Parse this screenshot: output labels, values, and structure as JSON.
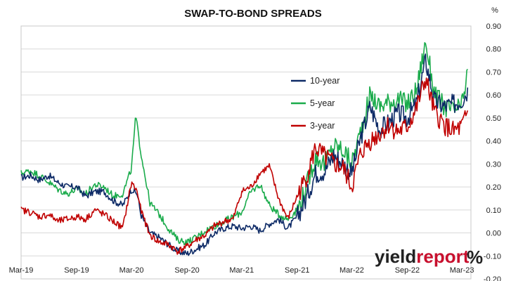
{
  "chart_data": {
    "type": "line",
    "title": "SWAP-TO-BOND SPREADS",
    "ylabel": "%",
    "xlabel": "",
    "ylim": [
      -0.2,
      0.9
    ],
    "yticks": [
      "0.90",
      "0.80",
      "0.70",
      "0.60",
      "0.50",
      "0.40",
      "0.30",
      "0.20",
      "0.10",
      "0.00",
      "-0.10",
      "-0.20"
    ],
    "ytick_values": [
      0.9,
      0.8,
      0.7,
      0.6,
      0.5,
      0.4,
      0.3,
      0.2,
      0.1,
      0.0,
      -0.1,
      -0.2
    ],
    "xticks": [
      "Mar-19",
      "Sep-19",
      "Mar-20",
      "Sep-20",
      "Mar-21",
      "Sep-21",
      "Mar-22",
      "Sep-22",
      "Mar-23"
    ],
    "xlim": [
      "2019-03-01",
      "2023-03-31"
    ],
    "grid": "horizontal",
    "legend_position": "center-top",
    "series": [
      {
        "name": "10-year",
        "color": "#0d2a66",
        "points": [
          [
            "2019-03-01",
            0.24
          ],
          [
            "2019-04-01",
            0.25
          ],
          [
            "2019-05-01",
            0.23
          ],
          [
            "2019-06-01",
            0.25
          ],
          [
            "2019-07-01",
            0.22
          ],
          [
            "2019-08-01",
            0.2
          ],
          [
            "2019-09-01",
            0.2
          ],
          [
            "2019-10-01",
            0.16
          ],
          [
            "2019-11-01",
            0.18
          ],
          [
            "2019-12-01",
            0.18
          ],
          [
            "2020-01-01",
            0.14
          ],
          [
            "2020-02-01",
            0.12
          ],
          [
            "2020-03-01",
            0.19
          ],
          [
            "2020-03-20",
            0.17
          ],
          [
            "2020-04-01",
            0.08
          ],
          [
            "2020-05-01",
            0.0
          ],
          [
            "2020-06-01",
            -0.02
          ],
          [
            "2020-07-01",
            -0.05
          ],
          [
            "2020-08-01",
            -0.08
          ],
          [
            "2020-09-01",
            -0.09
          ],
          [
            "2020-10-01",
            -0.07
          ],
          [
            "2020-11-01",
            -0.05
          ],
          [
            "2020-12-01",
            0.0
          ],
          [
            "2021-01-01",
            0.02
          ],
          [
            "2021-02-01",
            0.03
          ],
          [
            "2021-03-01",
            0.02
          ],
          [
            "2021-04-01",
            0.03
          ],
          [
            "2021-05-01",
            0.01
          ],
          [
            "2021-06-01",
            0.04
          ],
          [
            "2021-07-01",
            0.06
          ],
          [
            "2021-08-01",
            0.02
          ],
          [
            "2021-09-01",
            0.07
          ],
          [
            "2021-10-01",
            0.15
          ],
          [
            "2021-11-01",
            0.26
          ],
          [
            "2021-12-01",
            0.27
          ],
          [
            "2022-01-01",
            0.34
          ],
          [
            "2022-02-01",
            0.3
          ],
          [
            "2022-03-01",
            0.26
          ],
          [
            "2022-04-01",
            0.42
          ],
          [
            "2022-05-01",
            0.55
          ],
          [
            "2022-06-01",
            0.45
          ],
          [
            "2022-07-01",
            0.48
          ],
          [
            "2022-08-01",
            0.52
          ],
          [
            "2022-09-01",
            0.5
          ],
          [
            "2022-10-01",
            0.56
          ],
          [
            "2022-11-01",
            0.75
          ],
          [
            "2022-12-01",
            0.57
          ],
          [
            "2023-01-01",
            0.55
          ],
          [
            "2023-02-01",
            0.56
          ],
          [
            "2023-03-01",
            0.58
          ],
          [
            "2023-03-20",
            0.62
          ]
        ]
      },
      {
        "name": "5-year",
        "color": "#1aab4b",
        "points": [
          [
            "2019-03-01",
            0.26
          ],
          [
            "2019-04-01",
            0.27
          ],
          [
            "2019-05-01",
            0.25
          ],
          [
            "2019-06-01",
            0.22
          ],
          [
            "2019-07-01",
            0.19
          ],
          [
            "2019-08-01",
            0.17
          ],
          [
            "2019-09-01",
            0.19
          ],
          [
            "2019-10-01",
            0.17
          ],
          [
            "2019-11-01",
            0.21
          ],
          [
            "2019-12-01",
            0.2
          ],
          [
            "2020-01-01",
            0.16
          ],
          [
            "2020-02-01",
            0.17
          ],
          [
            "2020-03-01",
            0.28
          ],
          [
            "2020-03-15",
            0.51
          ],
          [
            "2020-04-01",
            0.35
          ],
          [
            "2020-05-01",
            0.13
          ],
          [
            "2020-06-01",
            0.08
          ],
          [
            "2020-07-01",
            0.02
          ],
          [
            "2020-08-01",
            -0.03
          ],
          [
            "2020-09-01",
            -0.04
          ],
          [
            "2020-10-01",
            -0.02
          ],
          [
            "2020-11-01",
            0.01
          ],
          [
            "2020-12-01",
            0.03
          ],
          [
            "2021-01-01",
            0.05
          ],
          [
            "2021-02-01",
            0.07
          ],
          [
            "2021-03-01",
            0.09
          ],
          [
            "2021-04-01",
            0.18
          ],
          [
            "2021-05-01",
            0.21
          ],
          [
            "2021-06-01",
            0.12
          ],
          [
            "2021-07-01",
            0.08
          ],
          [
            "2021-08-01",
            0.06
          ],
          [
            "2021-09-01",
            0.1
          ],
          [
            "2021-10-01",
            0.2
          ],
          [
            "2021-11-01",
            0.33
          ],
          [
            "2021-12-01",
            0.3
          ],
          [
            "2022-01-01",
            0.38
          ],
          [
            "2022-02-01",
            0.36
          ],
          [
            "2022-03-01",
            0.3
          ],
          [
            "2022-04-01",
            0.45
          ],
          [
            "2022-05-01",
            0.6
          ],
          [
            "2022-06-01",
            0.55
          ],
          [
            "2022-07-01",
            0.57
          ],
          [
            "2022-08-01",
            0.58
          ],
          [
            "2022-09-01",
            0.56
          ],
          [
            "2022-10-01",
            0.62
          ],
          [
            "2022-11-01",
            0.83
          ],
          [
            "2022-12-01",
            0.6
          ],
          [
            "2023-01-01",
            0.55
          ],
          [
            "2023-02-01",
            0.53
          ],
          [
            "2023-03-01",
            0.55
          ],
          [
            "2023-03-20",
            0.7
          ]
        ]
      },
      {
        "name": "3-year",
        "color": "#c00000",
        "points": [
          [
            "2019-03-01",
            0.1
          ],
          [
            "2019-04-01",
            0.09
          ],
          [
            "2019-05-01",
            0.07
          ],
          [
            "2019-06-01",
            0.08
          ],
          [
            "2019-07-01",
            0.05
          ],
          [
            "2019-08-01",
            0.06
          ],
          [
            "2019-09-01",
            0.07
          ],
          [
            "2019-10-01",
            0.06
          ],
          [
            "2019-11-01",
            0.1
          ],
          [
            "2019-12-01",
            0.08
          ],
          [
            "2020-01-01",
            0.05
          ],
          [
            "2020-02-01",
            0.02
          ],
          [
            "2020-03-01",
            0.22
          ],
          [
            "2020-03-20",
            0.18
          ],
          [
            "2020-04-01",
            0.1
          ],
          [
            "2020-05-01",
            -0.01
          ],
          [
            "2020-06-01",
            -0.04
          ],
          [
            "2020-07-01",
            -0.05
          ],
          [
            "2020-08-01",
            -0.08
          ],
          [
            "2020-09-01",
            -0.06
          ],
          [
            "2020-10-01",
            -0.03
          ],
          [
            "2020-11-01",
            -0.01
          ],
          [
            "2020-12-01",
            0.03
          ],
          [
            "2021-01-01",
            0.05
          ],
          [
            "2021-02-01",
            0.06
          ],
          [
            "2021-03-01",
            0.18
          ],
          [
            "2021-04-01",
            0.2
          ],
          [
            "2021-05-01",
            0.26
          ],
          [
            "2021-06-01",
            0.29
          ],
          [
            "2021-07-01",
            0.15
          ],
          [
            "2021-08-01",
            0.06
          ],
          [
            "2021-09-01",
            0.16
          ],
          [
            "2021-10-01",
            0.24
          ],
          [
            "2021-11-01",
            0.37
          ],
          [
            "2021-12-01",
            0.33
          ],
          [
            "2022-01-01",
            0.3
          ],
          [
            "2022-02-01",
            0.28
          ],
          [
            "2022-03-01",
            0.2
          ],
          [
            "2022-04-01",
            0.35
          ],
          [
            "2022-05-01",
            0.4
          ],
          [
            "2022-06-01",
            0.43
          ],
          [
            "2022-07-01",
            0.47
          ],
          [
            "2022-08-01",
            0.44
          ],
          [
            "2022-09-01",
            0.46
          ],
          [
            "2022-10-01",
            0.54
          ],
          [
            "2022-11-01",
            0.67
          ],
          [
            "2022-12-01",
            0.52
          ],
          [
            "2023-01-01",
            0.47
          ],
          [
            "2023-02-01",
            0.44
          ],
          [
            "2023-03-01",
            0.46
          ],
          [
            "2023-03-20",
            0.52
          ]
        ]
      }
    ]
  },
  "brand": {
    "part1": "yield",
    "part2": "report",
    "symbol": "%"
  }
}
